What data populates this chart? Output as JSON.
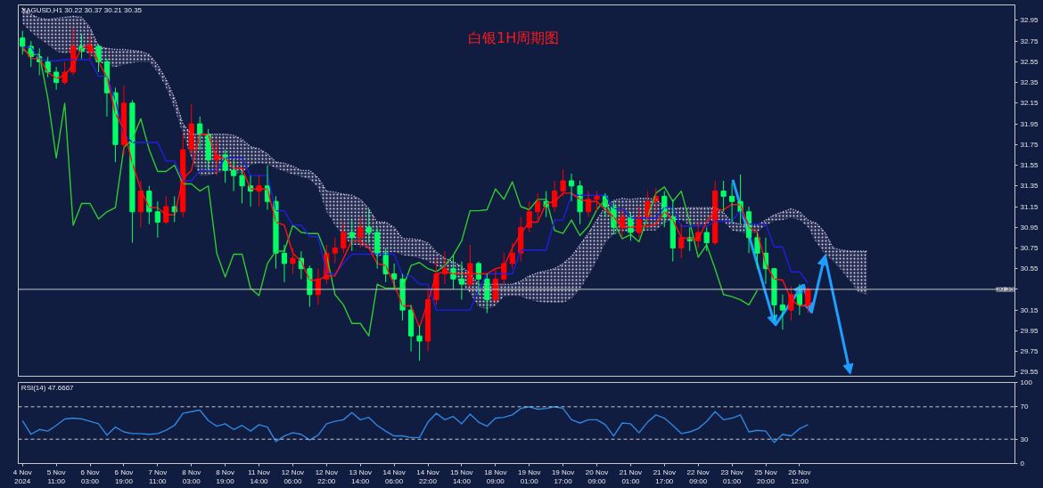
{
  "chart_data": [
    {
      "type": "candlestick",
      "title": "白银1H周期图",
      "subtitle": "XAGUSD,H1  30.22 30.37 30.21 30.35",
      "categories": [
        null,
        null,
        null,
        null,
        null,
        null,
        null,
        null,
        null,
        null,
        null,
        null,
        null,
        null,
        null,
        null,
        null,
        null,
        null,
        null,
        null,
        null,
        null,
        null,
        null,
        null,
        null,
        null,
        null,
        null,
        null,
        null,
        null,
        null,
        null,
        null,
        null,
        null,
        null,
        null,
        null,
        null,
        null,
        null,
        null,
        null,
        null,
        null,
        null,
        null,
        null,
        null,
        null,
        null,
        null,
        null,
        null,
        null,
        null,
        null,
        null,
        null,
        null,
        null,
        null,
        null,
        null,
        null,
        null,
        null,
        null,
        null,
        null,
        null,
        null,
        null,
        null,
        null,
        null,
        null,
        null,
        null,
        null,
        null,
        null,
        null,
        null,
        null,
        null,
        null,
        null,
        null,
        null,
        null,
        null,
        null,
        null,
        null,
        null,
        null,
        null,
        null,
        null,
        null,
        null,
        null,
        null,
        null,
        null,
        null,
        null,
        null,
        null,
        null,
        null,
        null,
        null,
        null
      ],
      "ohlc": [
        [
          32.78,
          32.85,
          32.62,
          32.7
        ],
        [
          32.7,
          32.75,
          32.5,
          32.6
        ],
        [
          32.6,
          32.68,
          32.42,
          32.55
        ],
        [
          32.55,
          32.6,
          32.4,
          32.45
        ],
        [
          32.45,
          32.5,
          32.28,
          32.35
        ],
        [
          32.35,
          32.55,
          32.33,
          32.45
        ],
        [
          32.45,
          32.88,
          32.42,
          32.7
        ],
        [
          32.7,
          32.82,
          32.58,
          32.65
        ],
        [
          32.65,
          32.8,
          32.58,
          32.7
        ],
        [
          32.7,
          32.72,
          32.45,
          32.55
        ],
        [
          32.55,
          32.58,
          32.02,
          32.25
        ],
        [
          32.25,
          32.3,
          31.58,
          31.75
        ],
        [
          31.75,
          32.32,
          31.65,
          32.15
        ],
        [
          32.15,
          32.18,
          30.8,
          31.1
        ],
        [
          31.1,
          31.4,
          30.95,
          31.3
        ],
        [
          31.3,
          31.35,
          30.98,
          31.1
        ],
        [
          31.1,
          31.2,
          30.85,
          31.0
        ],
        [
          31.0,
          31.25,
          30.98,
          31.15
        ],
        [
          31.15,
          31.25,
          31.0,
          31.1
        ],
        [
          31.1,
          31.85,
          31.05,
          31.7
        ],
        [
          31.7,
          32.14,
          31.65,
          31.95
        ],
        [
          31.95,
          32.02,
          31.7,
          31.85
        ],
        [
          31.85,
          31.9,
          31.5,
          31.6
        ],
        [
          31.6,
          31.8,
          31.45,
          31.65
        ],
        [
          31.65,
          31.7,
          31.38,
          31.5
        ],
        [
          31.5,
          31.6,
          31.3,
          31.45
        ],
        [
          31.45,
          31.5,
          31.18,
          31.35
        ],
        [
          31.35,
          31.45,
          31.15,
          31.3
        ],
        [
          31.3,
          31.45,
          31.15,
          31.35
        ],
        [
          31.35,
          31.55,
          31.12,
          31.2
        ],
        [
          31.2,
          31.25,
          30.55,
          30.7
        ],
        [
          30.7,
          30.78,
          30.42,
          30.6
        ],
        [
          30.6,
          30.75,
          30.5,
          30.65
        ],
        [
          30.65,
          30.72,
          30.45,
          30.55
        ],
        [
          30.55,
          30.58,
          30.18,
          30.3
        ],
        [
          30.3,
          30.55,
          30.2,
          30.45
        ],
        [
          30.45,
          30.78,
          30.4,
          30.7
        ],
        [
          30.7,
          30.85,
          30.6,
          30.75
        ],
        [
          30.75,
          31.0,
          30.7,
          30.9
        ],
        [
          30.9,
          31.02,
          30.72,
          30.85
        ],
        [
          30.85,
          31.05,
          30.75,
          30.95
        ],
        [
          30.95,
          31.13,
          30.8,
          30.9
        ],
        [
          30.9,
          30.95,
          30.55,
          30.7
        ],
        [
          30.7,
          30.75,
          30.42,
          30.5
        ],
        [
          30.5,
          30.6,
          30.35,
          30.45
        ],
        [
          30.45,
          30.5,
          30.05,
          30.15
        ],
        [
          30.15,
          30.2,
          29.75,
          29.9
        ],
        [
          29.9,
          30.0,
          29.66,
          29.85
        ],
        [
          29.85,
          30.35,
          29.75,
          30.25
        ],
        [
          30.25,
          30.65,
          30.2,
          30.5
        ],
        [
          30.5,
          30.72,
          30.4,
          30.55
        ],
        [
          30.55,
          30.68,
          30.35,
          30.45
        ],
        [
          30.45,
          30.62,
          30.25,
          30.4
        ],
        [
          30.4,
          30.78,
          30.35,
          30.6
        ],
        [
          30.6,
          30.62,
          30.3,
          30.45
        ],
        [
          30.45,
          30.5,
          30.12,
          30.25
        ],
        [
          30.25,
          30.55,
          30.22,
          30.45
        ],
        [
          30.45,
          30.7,
          30.4,
          30.6
        ],
        [
          30.6,
          30.8,
          30.55,
          30.7
        ],
        [
          30.7,
          31.05,
          30.62,
          30.95
        ],
        [
          30.95,
          31.2,
          30.9,
          31.1
        ],
        [
          31.1,
          31.28,
          31.0,
          31.2
        ],
        [
          31.2,
          31.3,
          31.05,
          31.15
        ],
        [
          31.15,
          31.4,
          31.1,
          31.3
        ],
        [
          31.3,
          31.51,
          31.25,
          31.4
        ],
        [
          31.4,
          31.47,
          31.2,
          31.35
        ],
        [
          31.35,
          31.4,
          30.98,
          31.1
        ],
        [
          31.1,
          31.3,
          31.05,
          31.22
        ],
        [
          31.22,
          31.3,
          31.1,
          31.25
        ],
        [
          31.25,
          31.28,
          31.05,
          31.15
        ],
        [
          31.15,
          31.2,
          30.88,
          30.95
        ],
        [
          30.95,
          31.12,
          30.85,
          31.05
        ],
        [
          31.05,
          31.1,
          30.82,
          30.9
        ],
        [
          30.9,
          31.15,
          30.85,
          31.05
        ],
        [
          31.05,
          31.3,
          31.0,
          31.2
        ],
        [
          31.2,
          31.33,
          31.1,
          31.25
        ],
        [
          31.25,
          31.3,
          30.95,
          31.05
        ],
        [
          31.05,
          31.22,
          30.62,
          30.75
        ],
        [
          30.75,
          30.98,
          30.65,
          30.85
        ],
        [
          30.85,
          30.95,
          30.72,
          30.82
        ],
        [
          30.82,
          31.0,
          30.75,
          30.9
        ],
        [
          30.9,
          30.95,
          30.72,
          30.8
        ],
        [
          30.8,
          31.4,
          30.78,
          31.3
        ],
        [
          31.3,
          31.4,
          31.1,
          31.25
        ],
        [
          31.25,
          31.38,
          31.0,
          31.2
        ],
        [
          31.2,
          31.46,
          30.98,
          31.1
        ],
        [
          31.1,
          31.15,
          30.7,
          30.85
        ],
        [
          30.85,
          30.9,
          30.55,
          30.7
        ],
        [
          30.7,
          30.85,
          30.4,
          30.55
        ],
        [
          30.55,
          30.55,
          30.05,
          30.2
        ],
        [
          30.2,
          30.3,
          29.96,
          30.15
        ],
        [
          30.15,
          30.38,
          30.05,
          30.3
        ],
        [
          30.3,
          30.4,
          30.1,
          30.2
        ],
        [
          30.2,
          30.37,
          30.12,
          30.35
        ],
        null,
        null,
        null,
        null,
        null,
        null,
        null,
        null,
        null,
        null,
        null,
        null,
        null,
        null,
        null,
        null,
        null,
        null,
        null,
        null,
        null,
        null,
        null,
        null
      ],
      "colors": [
        "#00ff66",
        "#00ff66",
        "#00ff66",
        "#00ff66",
        "#00ff66",
        "#ff0000",
        "#ff0000",
        "#00ff66",
        "#ff0000",
        "#00ff66",
        "#00ff66",
        "#00ff66",
        "#ff0000",
        "#00ff66",
        "#ff0000",
        "#00ff66",
        "#00ff66",
        "#ff0000",
        "#00ff66",
        "#ff0000",
        "#ff0000",
        "#00ff66",
        "#00ff66",
        "#ff0000",
        "#00ff66",
        "#00ff66",
        "#00ff66",
        "#00ff66",
        "#ff0000",
        "#00ff66",
        "#00ff66",
        "#00ff66",
        "#ff0000",
        "#00ff66",
        "#00ff66",
        "#ff0000",
        "#ff0000",
        "#ff0000",
        "#ff0000",
        "#00ff66",
        "#ff0000",
        "#00ff66",
        "#00ff66",
        "#00ff66",
        "#00ff66",
        "#00ff66",
        "#00ff66",
        "#00ff66",
        "#ff0000",
        "#ff0000",
        "#ff0000",
        "#00ff66",
        "#00ff66",
        "#ff0000",
        "#00ff66",
        "#00ff66",
        "#ff0000",
        "#ff0000",
        "#ff0000",
        "#ff0000",
        "#ff0000",
        "#ff0000",
        "#00ff66",
        "#ff0000",
        "#ff0000",
        "#00ff66",
        "#00ff66",
        "#ff0000",
        "#ff0000",
        "#00ff66",
        "#00ff66",
        "#ff0000",
        "#00ff66",
        "#ff0000",
        "#ff0000",
        "#ff0000",
        "#00ff66",
        "#00ff66",
        "#ff0000",
        "#00ff66",
        "#ff0000",
        "#00ff66",
        "#ff0000",
        "#00ff66",
        "#00ff66",
        "#00ff66",
        "#00ff66",
        "#00ff66",
        "#00ff66",
        "#00ff66",
        "#00ff66",
        "#ff0000",
        "#00ff66",
        "#ff0000",
        null,
        null,
        null,
        null,
        null,
        null,
        null,
        null,
        null,
        null,
        null,
        null,
        null,
        null,
        null,
        null,
        null,
        null,
        null,
        null,
        null,
        null,
        null,
        null
      ],
      "series": [
        {
          "type": "line",
          "color": "#d8cce6",
          "line_style": "dotted",
          "values": [
            33.07,
            33.01,
            32.97,
            32.96,
            32.97,
            32.98,
            32.99,
            32.98,
            32.88,
            32.7,
            32.68,
            32.67,
            32.67,
            32.66,
            32.65,
            32.62,
            32.52,
            32.38,
            32.2,
            31.95,
            31.85,
            31.85,
            31.85,
            31.85,
            31.85,
            31.84,
            31.8,
            31.73,
            31.71,
            31.66,
            31.58,
            31.57,
            31.54,
            31.5,
            31.5,
            31.43,
            31.3,
            31.29,
            31.27,
            31.26,
            31.22,
            31.13,
            31.0,
            31.0,
            30.95,
            30.84,
            30.84,
            30.83,
            30.8,
            30.71,
            30.65,
            30.62,
            30.57,
            30.5,
            30.4,
            30.4,
            30.4,
            30.4,
            30.4,
            30.43,
            30.48,
            30.51,
            30.53,
            30.55,
            30.6,
            30.67,
            30.78,
            30.89,
            31.02,
            31.15,
            31.21,
            31.23,
            31.22,
            31.23,
            31.23,
            31.22,
            31.15,
            31.13,
            31.14,
            31.14,
            31.14,
            31.14,
            31.14,
            31.09,
            31.0,
            30.98,
            30.97,
            30.97,
            31.02,
            31.07,
            31.1,
            31.13,
            31.1,
            31.02,
            30.99,
            30.9,
            30.75,
            30.73,
            30.72,
            30.72,
            30.72,
            null,
            null,
            null,
            null,
            null,
            null,
            null,
            null,
            null,
            null,
            null,
            null,
            null,
            null,
            null,
            null,
            null
          ],
          "upper": [
            33.07,
            33.01,
            32.97,
            32.96,
            32.97,
            32.98,
            32.99,
            32.98,
            32.88,
            32.7,
            32.68,
            32.67,
            32.67,
            32.66,
            32.65,
            32.62,
            32.52,
            32.38,
            32.2,
            31.95,
            31.85,
            31.85,
            31.85,
            31.85,
            31.85,
            31.84,
            31.8,
            31.73,
            31.71,
            31.66,
            31.58,
            31.57,
            31.54,
            31.5,
            31.5,
            31.43,
            31.3,
            31.29,
            31.27,
            31.26,
            31.22,
            31.13,
            31.0,
            31.0,
            30.95,
            30.84,
            30.84,
            30.83,
            30.8,
            30.71,
            30.65,
            30.62,
            30.57,
            30.5,
            30.4,
            30.4,
            30.4,
            30.4,
            30.4,
            30.43,
            30.48,
            30.51,
            30.53,
            30.55,
            30.6,
            30.67,
            30.78,
            30.89,
            31.02,
            31.15,
            31.21,
            31.23,
            31.22,
            31.23,
            31.23,
            31.22,
            31.15,
            31.13,
            31.14,
            31.14,
            31.14,
            31.14,
            31.14,
            31.09,
            31.0,
            30.98,
            30.97,
            30.97,
            31.02,
            31.07,
            31.1,
            31.13,
            31.1,
            31.02,
            30.99,
            30.9,
            30.75,
            30.73,
            30.72,
            30.72,
            30.72,
            null,
            null,
            null,
            null,
            null,
            null,
            null,
            null,
            null,
            null,
            null,
            null,
            null,
            null,
            null,
            null,
            null
          ],
          "lower": [
            32.92,
            32.84,
            32.77,
            32.72,
            32.65,
            32.63,
            32.65,
            32.66,
            32.62,
            32.55,
            32.52,
            32.5,
            32.52,
            32.54,
            32.55,
            32.55,
            32.45,
            32.3,
            32.1,
            31.85,
            31.62,
            31.45,
            31.45,
            31.47,
            31.5,
            31.47,
            31.48,
            31.55,
            31.57,
            31.56,
            31.52,
            31.49,
            31.46,
            31.44,
            31.41,
            31.33,
            31.1,
            30.97,
            30.86,
            30.78,
            30.78,
            30.74,
            30.66,
            30.7,
            30.71,
            30.68,
            30.67,
            30.65,
            30.62,
            30.58,
            30.53,
            30.48,
            30.41,
            30.31,
            30.18,
            30.16,
            30.19,
            30.28,
            30.29,
            30.28,
            30.25,
            30.23,
            30.22,
            30.22,
            30.22,
            30.26,
            30.35,
            30.48,
            30.63,
            30.8,
            30.88,
            30.91,
            30.9,
            30.91,
            30.92,
            30.92,
            30.99,
            31.02,
            31.02,
            30.97,
            30.96,
            30.98,
            31.03,
            31.01,
            30.92,
            30.9,
            30.89,
            30.9,
            30.97,
            31.01,
            31.02,
            31.04,
            31.02,
            30.95,
            30.8,
            30.69,
            30.62,
            30.53,
            30.43,
            30.32,
            30.3,
            null,
            null,
            null,
            null,
            null,
            null,
            null,
            null,
            null,
            null,
            null,
            null,
            null,
            null,
            null,
            null,
            null
          ]
        },
        {
          "type": "line",
          "color": "#2ecc2e",
          "values": [
            32.67,
            32.62,
            32.62,
            32.2,
            31.62,
            32.15,
            30.97,
            31.18,
            31.18,
            31.03,
            31.1,
            31.14,
            31.72,
            31.8,
            32.0,
            31.7,
            31.49,
            31.49,
            31.55,
            31.37,
            31.37,
            31.3,
            31.35,
            30.7,
            30.47,
            30.69,
            30.69,
            30.36,
            30.29,
            30.6,
            30.72,
            30.72,
            30.97,
            30.9,
            30.89,
            30.89,
            30.68,
            30.3,
            30.2,
            30.02,
            30.02,
            29.9,
            30.4,
            30.36,
            30.36,
            30.36,
            30.58,
            30.61,
            30.55,
            30.52,
            30.58,
            30.68,
            30.82,
            31.11,
            31.11,
            31.12,
            31.32,
            31.22,
            31.39,
            31.15,
            31.12,
            31.22,
            31.22,
            30.92,
            30.89,
            31.02,
            30.87,
            30.96,
            31.12,
            31.22,
            31.0,
            30.84,
            30.88,
            30.81,
            31.05,
            31.28,
            31.34,
            31.2,
            31.3,
            31.0,
            30.66,
            30.78,
            30.55,
            30.3,
            30.28,
            30.25,
            30.2,
            30.34,
            null,
            null,
            null,
            null,
            null,
            null,
            null,
            null,
            null,
            null,
            null,
            null,
            null,
            null,
            null,
            null,
            null,
            null,
            null,
            null,
            null,
            null,
            null,
            null,
            null,
            null,
            null,
            null,
            null,
            null
          ]
        },
        {
          "type": "line",
          "color": "#1f1fe0",
          "values": [
            32.69,
            32.69,
            32.58,
            32.56,
            32.56,
            32.57,
            32.57,
            32.57,
            32.57,
            32.41,
            32.41,
            32.18,
            31.85,
            31.77,
            31.77,
            31.77,
            31.77,
            31.59,
            31.59,
            31.4,
            31.4,
            31.5,
            31.5,
            31.5,
            31.62,
            31.62,
            31.62,
            31.45,
            31.45,
            31.45,
            31.11,
            31.11,
            30.97,
            30.97,
            30.86,
            30.86,
            30.5,
            30.5,
            30.6,
            30.69,
            30.69,
            30.69,
            30.69,
            30.69,
            30.69,
            30.48,
            30.48,
            30.4,
            30.4,
            30.15,
            30.15,
            30.15,
            30.15,
            30.15,
            30.35,
            30.5,
            30.5,
            30.5,
            30.5,
            30.73,
            30.73,
            30.73,
            30.73,
            31.02,
            31.02,
            31.26,
            31.26,
            31.26,
            31.26,
            31.26,
            31.13,
            31.13,
            31.04,
            31.04,
            31.04,
            31.04,
            31.14,
            31.14,
            30.96,
            30.96,
            30.96,
            30.96,
            31.01,
            31.01,
            31.01,
            31.11,
            30.98,
            30.98,
            30.98,
            30.76,
            30.76,
            30.52,
            30.52,
            30.41,
            null,
            null,
            null,
            null,
            null,
            null,
            null,
            null,
            null,
            null,
            null,
            null,
            null,
            null,
            null,
            null,
            null,
            null,
            null,
            null,
            null,
            null,
            null,
            null
          ]
        },
        {
          "type": "line",
          "color": "#ff1010",
          "values": [
            32.7,
            32.58,
            32.58,
            32.45,
            32.39,
            32.42,
            32.52,
            32.68,
            32.72,
            32.55,
            32.4,
            32.05,
            31.9,
            31.57,
            31.32,
            31.14,
            31.14,
            31.07,
            31.07,
            31.42,
            31.5,
            31.85,
            31.85,
            31.62,
            31.62,
            31.52,
            31.52,
            31.32,
            31.32,
            31.32,
            31.0,
            30.97,
            30.7,
            30.62,
            30.44,
            30.44,
            30.48,
            30.48,
            30.65,
            30.82,
            30.82,
            30.75,
            30.6,
            30.58,
            30.4,
            30.19,
            30.19,
            29.98,
            30.23,
            30.5,
            30.52,
            30.5,
            30.5,
            30.5,
            30.5,
            30.5,
            30.55,
            30.57,
            30.75,
            30.89,
            31.0,
            31.0,
            31.18,
            31.2,
            31.28,
            31.28,
            31.22,
            31.2,
            31.2,
            31.12,
            31.05,
            30.95,
            30.95,
            30.96,
            30.96,
            30.98,
            31.1,
            31.02,
            30.85,
            30.84,
            30.84,
            31.0,
            31.12,
            31.12,
            31.17,
            31.17,
            30.95,
            30.9,
            30.6,
            30.45,
            30.44,
            30.25,
            30.19,
            30.19,
            null,
            null,
            null,
            null,
            null,
            null,
            null,
            null,
            null,
            null,
            null,
            null,
            null,
            null,
            null,
            null,
            null,
            null,
            null,
            null,
            null,
            null,
            null,
            null
          ]
        }
      ],
      "ylim": [
        29.51,
        33.1
      ],
      "yticks": [
        32.95,
        32.75,
        32.55,
        32.35,
        32.15,
        31.95,
        31.75,
        31.55,
        31.35,
        31.15,
        30.95,
        30.75,
        30.55,
        {
          "value": 30.35,
          "label": null
        },
        30.15,
        29.95,
        29.75,
        29.55
      ],
      "ref_lines": [
        {
          "axis": "y",
          "value": 30.35,
          "label": "30.35",
          "color": "#c8c8c8"
        }
      ],
      "tick_labels": "y"
    },
    {
      "type": "line",
      "title": "RSI(14) 47.6667",
      "categories": [
        "4 Nov 2024",
        null,
        null,
        null,
        "5 Nov 11:00",
        null,
        null,
        null,
        "6 Nov 03:00",
        null,
        null,
        null,
        "6 Nov 19:00",
        null,
        null,
        null,
        "7 Nov 11:00",
        null,
        null,
        null,
        "8 Nov 03:00",
        null,
        null,
        null,
        "8 Nov 19:00",
        null,
        null,
        null,
        "11 Nov 14:00",
        null,
        null,
        null,
        "12 Nov 06:00",
        null,
        null,
        null,
        "12 Nov 22:00",
        null,
        null,
        null,
        "13 Nov 14:00",
        null,
        null,
        null,
        "14 Nov 06:00",
        null,
        null,
        null,
        "14 Nov 22:00",
        null,
        null,
        null,
        "15 Nov 14:00",
        null,
        null,
        null,
        "18 Nov 09:00",
        null,
        null,
        null,
        "19 Nov 01:00",
        null,
        null,
        null,
        "19 Nov 17:00",
        null,
        null,
        null,
        "20 Nov 09:00",
        null,
        null,
        null,
        "21 Nov 01:00",
        null,
        null,
        null,
        "21 Nov 17:00",
        null,
        null,
        null,
        "22 Nov 09:00",
        null,
        null,
        null,
        "23 Nov 01:00",
        null,
        null,
        null,
        "25 Nov 20:00",
        null,
        null,
        null,
        "26 Nov 12:00",
        null,
        null,
        null,
        null,
        null,
        null,
        null,
        null,
        null,
        null,
        null,
        null,
        null,
        null,
        null,
        null,
        null,
        null,
        null,
        null,
        null,
        null,
        null,
        null,
        null
      ],
      "series": [
        {
          "color": "#2f86e0",
          "values": [
            53,
            36,
            42,
            40,
            47,
            55,
            56,
            55,
            52,
            49,
            35,
            45,
            39,
            37,
            37,
            36,
            37,
            41,
            47,
            62,
            64,
            66,
            53,
            46,
            49,
            42,
            47,
            40,
            48,
            45,
            27,
            34,
            38,
            36,
            29,
            35,
            49,
            52,
            54,
            63,
            54,
            57,
            47,
            40,
            34,
            34,
            32,
            32,
            51,
            62,
            54,
            58,
            49,
            61,
            51,
            46,
            56,
            57,
            60,
            68,
            70,
            67,
            68,
            70,
            68,
            54,
            50,
            54,
            54,
            48,
            34,
            50,
            49,
            38,
            51,
            60,
            56,
            47,
            37,
            39,
            43,
            52,
            64,
            54,
            56,
            60,
            39,
            41,
            40,
            26,
            36,
            34,
            43,
            48,
            null,
            null,
            null,
            null,
            null,
            null,
            null,
            null,
            null,
            null,
            null,
            null,
            null,
            null,
            null,
            null,
            null,
            null,
            null,
            null,
            null,
            null,
            null,
            null
          ]
        }
      ],
      "ylim": [
        0,
        100
      ],
      "yticks": [
        0,
        30,
        70,
        100
      ],
      "ref_lines": [
        {
          "axis": "y",
          "value": 70,
          "color": "#c8c8c8",
          "line_style": "dashed"
        },
        {
          "axis": "y",
          "value": 30,
          "color": "#c8c8c8",
          "line_style": "dashed"
        }
      ]
    }
  ]
}
